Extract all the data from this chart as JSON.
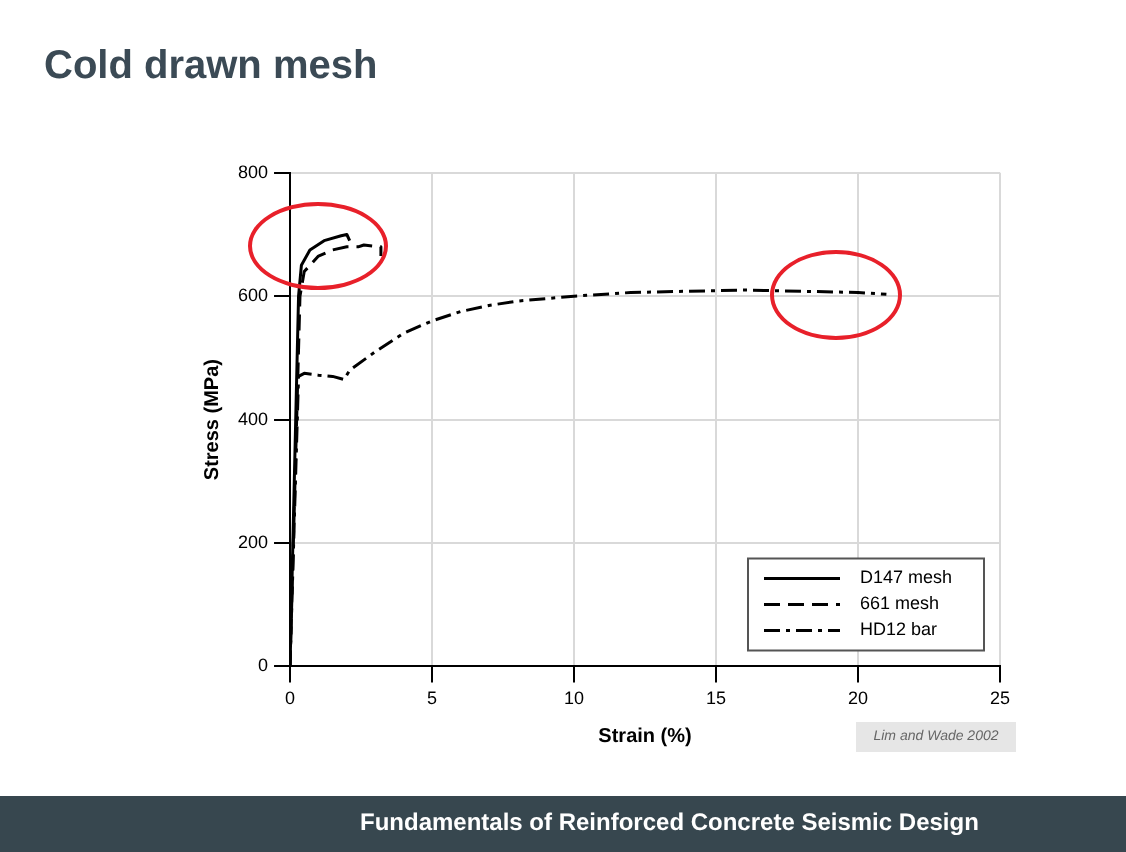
{
  "chart_data": {
    "type": "line",
    "title": "Cold drawn mesh",
    "xlabel": "Strain (%)",
    "ylabel": "Stress (MPa)",
    "xlim": [
      0,
      25
    ],
    "xticks": [
      0,
      5,
      10,
      15,
      20,
      25
    ],
    "ylim": [
      0,
      800
    ],
    "yticks": [
      0,
      200,
      400,
      600,
      800
    ],
    "grid": true,
    "legend": "bottom right",
    "marker": "none",
    "series": [
      {
        "name": "D147 mesh",
        "color": "#000000",
        "line_style": "solid",
        "x": [
          0,
          0.3,
          0.4,
          0.7,
          1.2,
          1.8,
          2.0,
          2.1
        ],
        "values": [
          0,
          600,
          650,
          675,
          690,
          698,
          700,
          690
        ]
      },
      {
        "name": "661 mesh",
        "color": "#000000",
        "line_style": "dashed",
        "x": [
          0,
          0.35,
          0.5,
          1,
          1.5,
          2,
          2.4,
          2.6,
          3.2,
          3.2
        ],
        "values": [
          0,
          600,
          640,
          665,
          675,
          680,
          680,
          683,
          680,
          665
        ]
      },
      {
        "name": "HD12 bar",
        "color": "#000000",
        "line_style": "dashdot",
        "x": [
          0,
          0.3,
          0.5,
          1,
          1.5,
          1.9,
          2.1,
          3,
          4,
          5,
          6,
          7,
          8,
          10,
          12,
          14,
          16,
          18,
          20,
          21
        ],
        "values": [
          0,
          470,
          475,
          472,
          470,
          465,
          480,
          510,
          540,
          560,
          575,
          585,
          592,
          600,
          606,
          608,
          610,
          608,
          606,
          603
        ]
      }
    ],
    "annotations": [
      "Lim and Wade 2002",
      "Fundamentals of Reinforced Concrete Seismic Design"
    ]
  }
}
